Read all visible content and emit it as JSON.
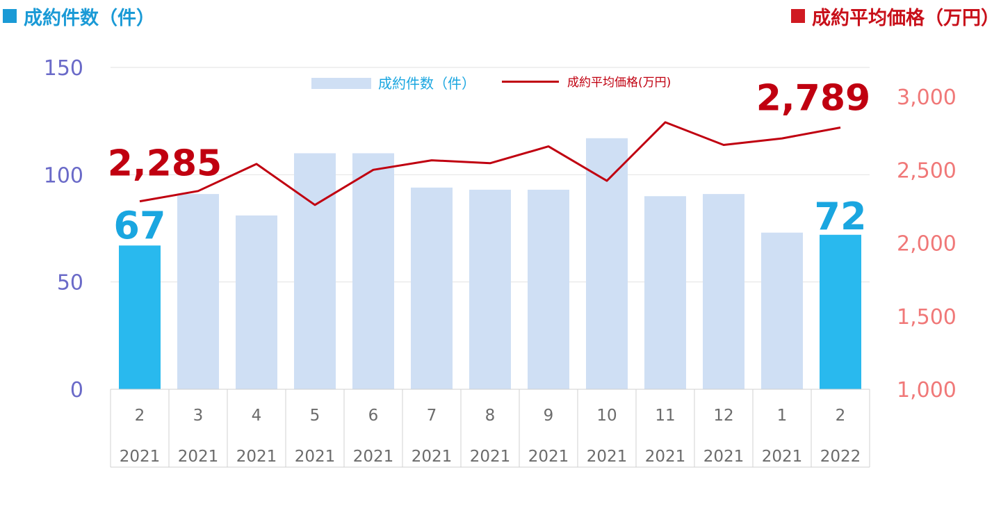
{
  "header": {
    "left_title": "成約件数（件）",
    "right_title": "成約平均価格（万円）"
  },
  "chart_data": {
    "type": "bar",
    "categories": [
      "2",
      "3",
      "4",
      "5",
      "6",
      "7",
      "8",
      "9",
      "10",
      "11",
      "12",
      "1",
      "2"
    ],
    "category_years": [
      "2021",
      "2021",
      "2021",
      "2021",
      "2021",
      "2021",
      "2021",
      "2021",
      "2021",
      "2021",
      "2021",
      "2021",
      "2022"
    ],
    "series": [
      {
        "name": "成約件数（件）",
        "type": "bar",
        "axis": "left",
        "values": [
          67,
          91,
          81,
          110,
          110,
          94,
          93,
          93,
          117,
          90,
          91,
          73,
          72
        ],
        "highlight_indices": [
          0,
          12
        ]
      },
      {
        "name": "成約平均価格(万円)",
        "type": "line",
        "axis": "right",
        "values": [
          2285,
          2355,
          2540,
          2260,
          2500,
          2565,
          2545,
          2660,
          2425,
          2825,
          2670,
          2715,
          2789
        ]
      }
    ],
    "left_axis": {
      "ylim": [
        0,
        150
      ],
      "ticks": [
        "0",
        "50",
        "100",
        "150"
      ]
    },
    "right_axis": {
      "ylim": [
        1000,
        3200
      ],
      "ticks": [
        "1,000",
        "1,500",
        "2,000",
        "2,500",
        "3,000"
      ]
    },
    "annotations": {
      "first_bar_label": "67",
      "last_bar_label": "72",
      "first_line_label": "2,285",
      "last_line_label": "2,789"
    },
    "legend": {
      "placement": "top-center"
    },
    "grid": true,
    "colors": {
      "bar": "#cfdff4",
      "bar_highlight": "#29b9ee",
      "line": "#c00010",
      "left_axis": "#6a6ac8",
      "right_axis": "#f07878",
      "bar_label": "#1aa6e0",
      "line_label": "#c00010"
    }
  }
}
